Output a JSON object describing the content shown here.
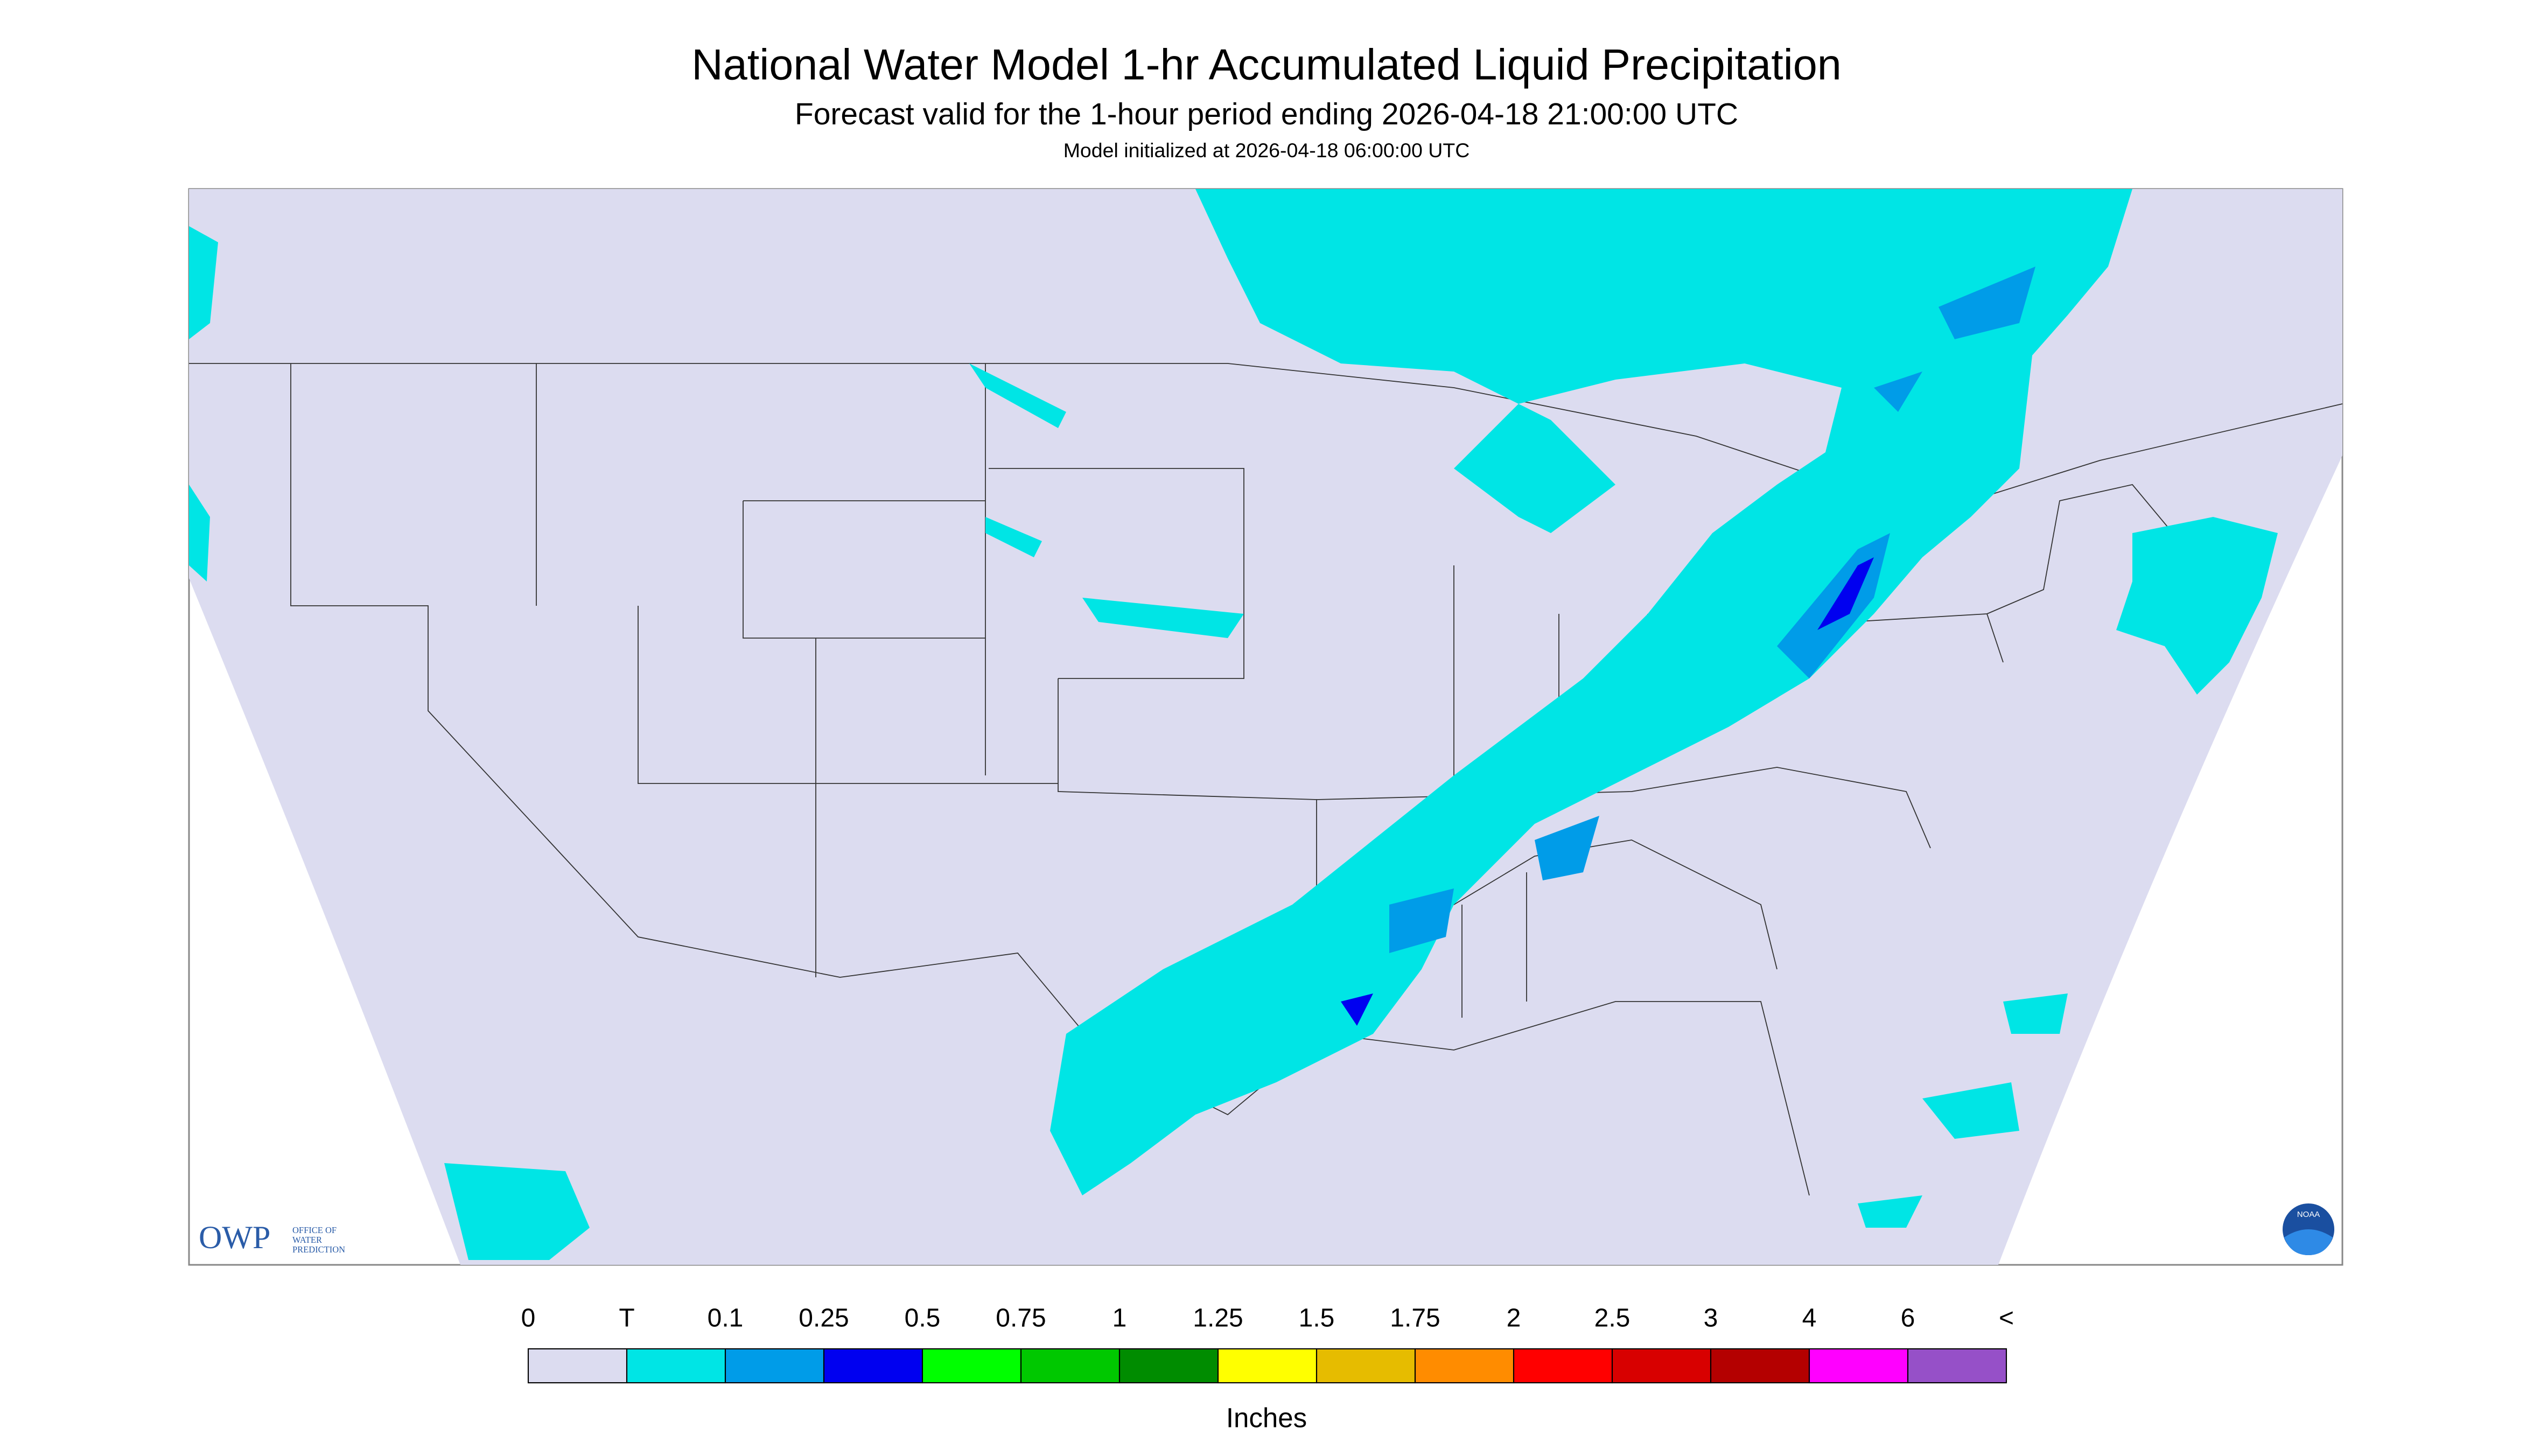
{
  "header": {
    "title": "National Water Model 1-hr Accumulated Liquid Precipitation",
    "subtitle": "Forecast valid for the 1-hour period ending 2026-04-18 21:00:00 UTC",
    "note": "Model initialized at 2026-04-18 06:00:00 UTC"
  },
  "legend": {
    "labels": [
      "0",
      "T",
      "0.1",
      "0.25",
      "0.5",
      "0.75",
      "1",
      "1.25",
      "1.5",
      "1.75",
      "2",
      "2.5",
      "3",
      "4",
      "6",
      "<"
    ],
    "colors": [
      "#dcdcf0",
      "#00e5e5",
      "#009ce8",
      "#0000f0",
      "#00ff00",
      "#00c800",
      "#008c00",
      "#ffff00",
      "#e6bc00",
      "#ff8c00",
      "#ff0000",
      "#d80000",
      "#b40000",
      "#ff00ff",
      "#9650c8"
    ],
    "unit": "Inches"
  },
  "logos": {
    "owp": "OWP",
    "owp_full": [
      "OFFICE OF",
      "WATER",
      "PREDICTION"
    ],
    "noaa": "NOAA"
  }
}
